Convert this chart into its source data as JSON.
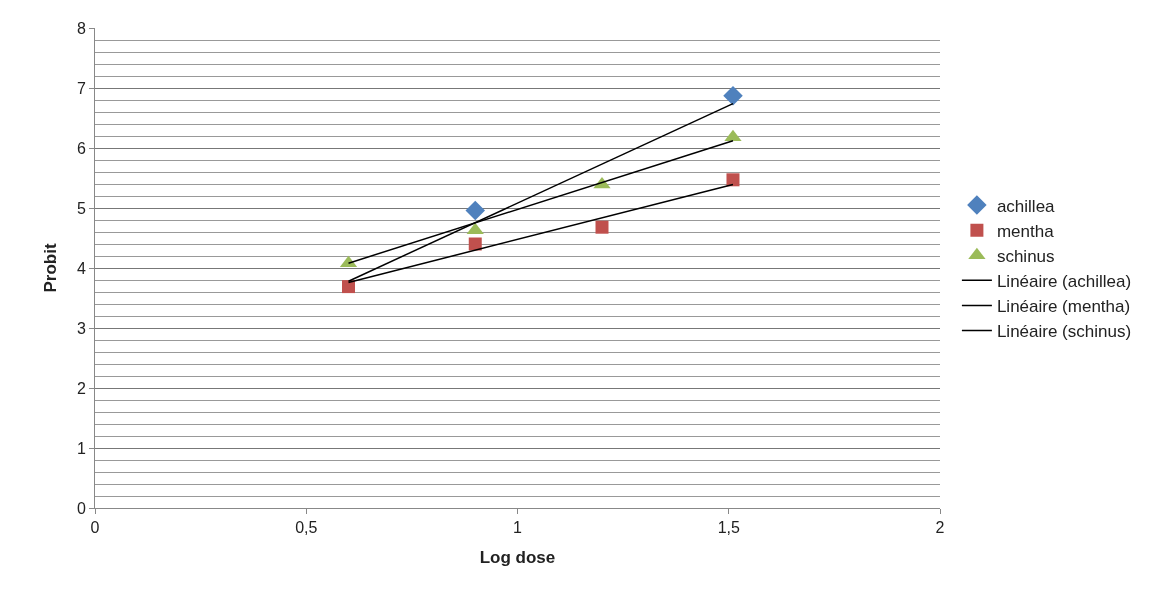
{
  "chart_data": {
    "type": "scatter",
    "xlabel": "Log dose",
    "ylabel": "Probit",
    "x": [
      0.6,
      0.9,
      1.2,
      1.51
    ],
    "series": [
      {
        "name": "achillea",
        "color": "#4f81bd",
        "marker": "diamond",
        "values": [
          null,
          4.96,
          null,
          6.87
        ]
      },
      {
        "name": "mentha",
        "color": "#c0504d",
        "marker": "square",
        "values": [
          3.69,
          4.4,
          4.68,
          5.47
        ]
      },
      {
        "name": "schinus",
        "color": "#9bbb59",
        "marker": "triangle",
        "values": [
          4.08,
          4.63,
          5.39,
          6.18
        ]
      },
      {
        "name": "Linéaire (achillea)",
        "type": "line",
        "color": "#000000",
        "marker": "none",
        "values": [
          3.78,
          null,
          null,
          6.74
        ]
      },
      {
        "name": "Linéaire (mentha)",
        "type": "line",
        "color": "#000000",
        "marker": "none",
        "values": [
          3.76,
          null,
          null,
          5.39
        ]
      },
      {
        "name": "Linéaire (schinus)",
        "type": "line",
        "color": "#000000",
        "marker": "none",
        "values": [
          4.08,
          null,
          null,
          6.12
        ]
      }
    ],
    "xlim": [
      0,
      2
    ],
    "xticks": [
      0,
      {
        "value": 0.5,
        "label": "0,5"
      },
      1,
      {
        "value": 1.5,
        "label": "1,5"
      },
      2
    ],
    "ylim": [
      0,
      8
    ],
    "yticks": [
      0,
      1,
      2,
      3,
      4,
      5,
      6,
      7,
      8
    ],
    "grid": "y",
    "legend": "right"
  }
}
